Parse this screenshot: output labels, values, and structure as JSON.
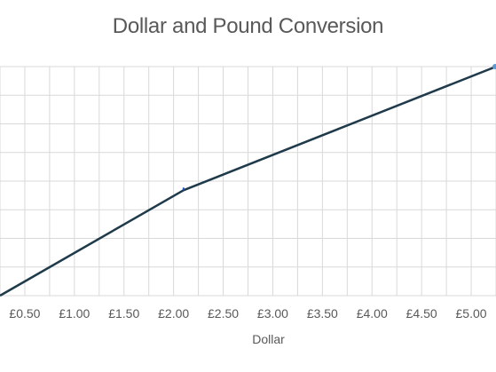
{
  "chart_data": {
    "type": "line",
    "title": "Dollar and Pound Conversion",
    "xlabel": "Dollar",
    "ylabel": "",
    "x_tick_labels": [
      "£0.50",
      "£1.00",
      "£1.50",
      "£2.00",
      "£2.50",
      "£3.00",
      "£3.50",
      "£4.00",
      "£4.50",
      "£5.00"
    ],
    "x_ticks": [
      0.5,
      1.0,
      1.5,
      2.0,
      2.5,
      3.0,
      3.5,
      4.0,
      4.5,
      5.0
    ],
    "xlim": [
      0.25,
      5.25
    ],
    "y_gridlines": 9,
    "grid": true,
    "legend": "none",
    "series": [
      {
        "x": [
          0.25,
          2.1,
          5.25
        ],
        "y": [
          0.0,
          0.46,
          1.0
        ],
        "color": "#1f3a4a",
        "marker_color": "#5b9bd5"
      }
    ],
    "colors": {
      "grid": "#d9d9d9",
      "line": "#1f3a4a",
      "text": "#595959"
    }
  }
}
